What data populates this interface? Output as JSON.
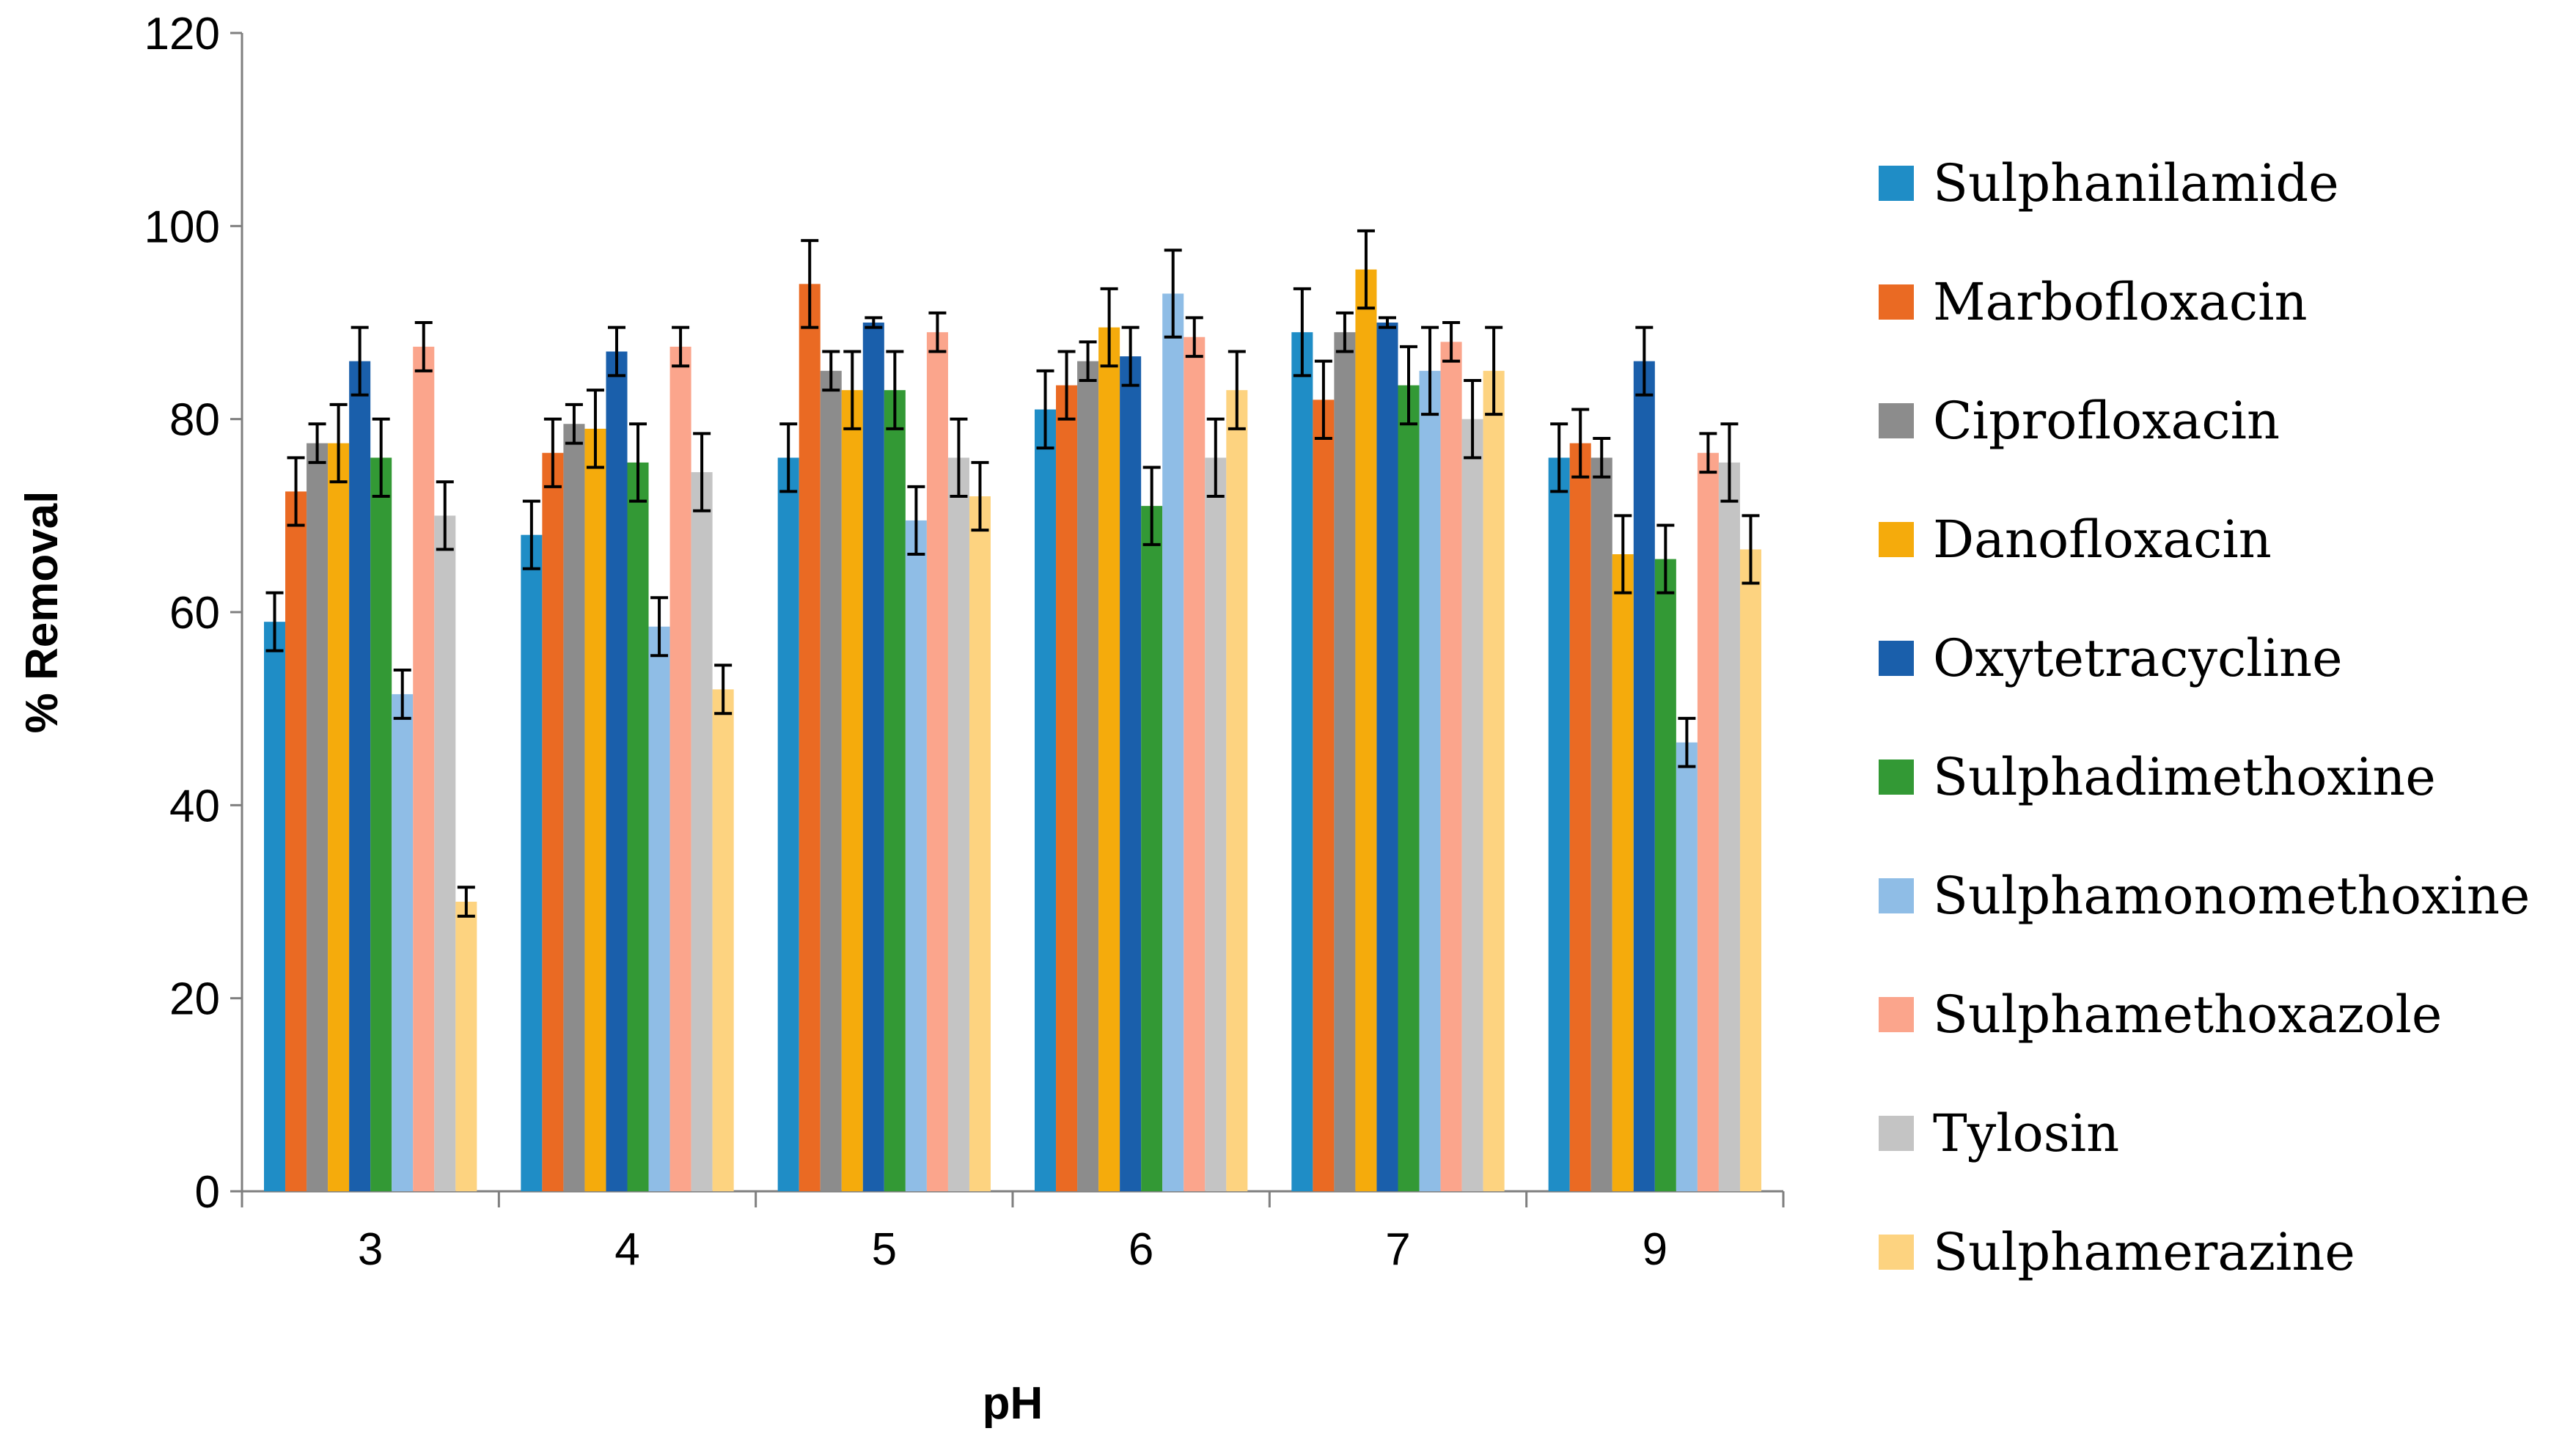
{
  "chart_data": {
    "type": "bar",
    "title": "",
    "xlabel": "pH",
    "ylabel": "% Removal",
    "ylim": [
      0,
      120
    ],
    "yticks": [
      0,
      20,
      40,
      60,
      80,
      100,
      120
    ],
    "grid": false,
    "legend_position": "right",
    "categories": [
      "3",
      "4",
      "5",
      "6",
      "7",
      "9"
    ],
    "series": [
      {
        "name": "Sulphanilamide",
        "color": "#1f8dc6",
        "values": [
          59,
          68,
          76,
          81,
          89,
          76
        ],
        "errors": [
          3,
          3.5,
          3.5,
          4,
          4.5,
          3.5
        ]
      },
      {
        "name": "Marbofloxacin",
        "color": "#ea6a23",
        "values": [
          72.5,
          76.5,
          94,
          83.5,
          82,
          77.5
        ],
        "errors": [
          3.5,
          3.5,
          4.5,
          3.5,
          4,
          3.5
        ]
      },
      {
        "name": "Ciprofloxacin",
        "color": "#8c8c8c",
        "values": [
          77.5,
          79.5,
          85,
          86,
          89,
          76
        ],
        "errors": [
          2,
          2,
          2,
          2,
          2,
          2
        ]
      },
      {
        "name": "Danofloxacin",
        "color": "#f5ab0c",
        "values": [
          77.5,
          79,
          83,
          89.5,
          95.5,
          66
        ],
        "errors": [
          4,
          4,
          4,
          4,
          4,
          4
        ]
      },
      {
        "name": "Oxytetracycline",
        "color": "#1a5fab",
        "values": [
          86,
          87,
          90,
          86.5,
          90,
          86
        ],
        "errors": [
          3.5,
          2.5,
          0.5,
          3,
          0.5,
          3.5
        ]
      },
      {
        "name": "Sulphadimethoxine",
        "color": "#339935",
        "values": [
          76,
          75.5,
          83,
          71,
          83.5,
          65.5
        ],
        "errors": [
          4,
          4,
          4,
          4,
          4,
          3.5
        ]
      },
      {
        "name": "Sulphamonomethoxine",
        "color": "#8fbde6",
        "values": [
          51.5,
          58.5,
          69.5,
          93,
          85,
          46.5
        ],
        "errors": [
          2.5,
          3,
          3.5,
          4.5,
          4.5,
          2.5
        ]
      },
      {
        "name": "Sulphamethoxazole",
        "color": "#fba58c",
        "values": [
          87.5,
          87.5,
          89,
          88.5,
          88,
          76.5
        ],
        "errors": [
          2.5,
          2,
          2,
          2,
          2,
          2
        ]
      },
      {
        "name": "Tylosin",
        "color": "#c4c4c4",
        "values": [
          70,
          74.5,
          76,
          76,
          80,
          75.5
        ],
        "errors": [
          3.5,
          4,
          4,
          4,
          4,
          4
        ]
      },
      {
        "name": "Sulphamerazine",
        "color": "#fdd380",
        "values": [
          30,
          52,
          72,
          83,
          85,
          66.5
        ],
        "errors": [
          1.5,
          2.5,
          3.5,
          4,
          4.5,
          3.5
        ]
      }
    ]
  }
}
